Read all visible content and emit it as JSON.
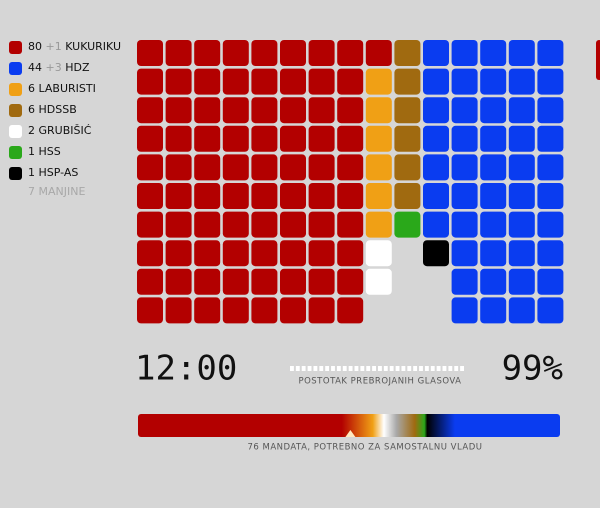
{
  "chart_data": {
    "type": "waffle",
    "parties": [
      {
        "seats": 80,
        "extra": {
          "value": 1,
          "label": "+1"
        },
        "name": "KUKURIKU",
        "color": "#b30000"
      },
      {
        "seats": 44,
        "extra": {
          "value": 3,
          "label": "+3"
        },
        "name": "HDZ",
        "color": "#0a3cf0"
      },
      {
        "seats": 6,
        "name": "LABURISTI",
        "color": "#f0a015"
      },
      {
        "seats": 6,
        "name": "HDSSB",
        "color": "#a06a10"
      },
      {
        "seats": 2,
        "name": "GRUBIŠIĆ",
        "color": "#ffffff"
      },
      {
        "seats": 1,
        "name": "HSS",
        "color": "#2aa81a"
      },
      {
        "seats": 1,
        "name": "HSP-AS",
        "color": "#000000"
      },
      {
        "seats": 7,
        "name": "MANJINE",
        "color": "#a8a8a8"
      }
    ],
    "time": "12:00",
    "counted": {
      "value": 99,
      "label": "99%"
    },
    "counted_caption": "POSTOTAK PREBROJANIH GLASOVA",
    "majority": {
      "value": 76,
      "label": "76 MANDATA, POTREBNO ZA SAMOSTALNU VLADU"
    }
  }
}
